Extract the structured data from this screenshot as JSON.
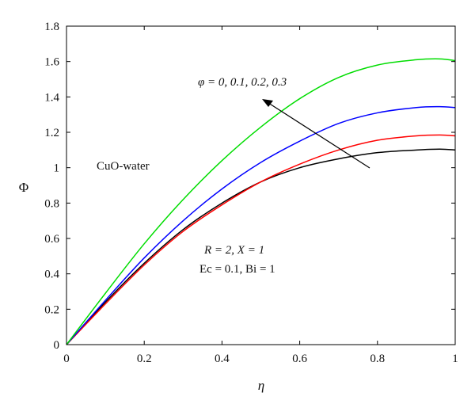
{
  "chart_data": {
    "type": "line",
    "xlabel": "η",
    "ylabel": "Φ",
    "xlim": [
      0,
      1
    ],
    "ylim": [
      0,
      1.8
    ],
    "xticks": [
      "0",
      "0.2",
      "0.4",
      "0.6",
      "0.8",
      "1"
    ],
    "yticks": [
      "0",
      "0.2",
      "0.4",
      "0.6",
      "0.8",
      "1",
      "1.2",
      "1.4",
      "1.6",
      "1.8"
    ],
    "grid": false,
    "x": [
      0,
      0.1,
      0.2,
      0.3,
      0.4,
      0.5,
      0.6,
      0.7,
      0.8,
      0.9,
      0.96,
      1.0
    ],
    "series": [
      {
        "color": "#000000",
        "values": [
          0,
          0.24,
          0.46,
          0.65,
          0.8,
          0.92,
          1.0,
          1.05,
          1.085,
          1.1,
          1.105,
          1.1
        ]
      },
      {
        "color": "#ff0000",
        "values": [
          0,
          0.23,
          0.45,
          0.64,
          0.79,
          0.92,
          1.02,
          1.1,
          1.155,
          1.18,
          1.185,
          1.18
        ]
      },
      {
        "color": "#0000ff",
        "values": [
          0,
          0.25,
          0.49,
          0.7,
          0.88,
          1.03,
          1.15,
          1.25,
          1.31,
          1.34,
          1.345,
          1.34
        ]
      },
      {
        "color": "#00dd00",
        "values": [
          0,
          0.29,
          0.57,
          0.82,
          1.04,
          1.23,
          1.39,
          1.51,
          1.58,
          1.61,
          1.615,
          1.605
        ]
      }
    ],
    "annotations": {
      "phi": "φ = 0, 0.1, 0.2, 0.3",
      "fluid": "CuO-water",
      "params1": "R = 2, X = 1",
      "params2": "Ec = 0.1, Bi = 1"
    }
  }
}
